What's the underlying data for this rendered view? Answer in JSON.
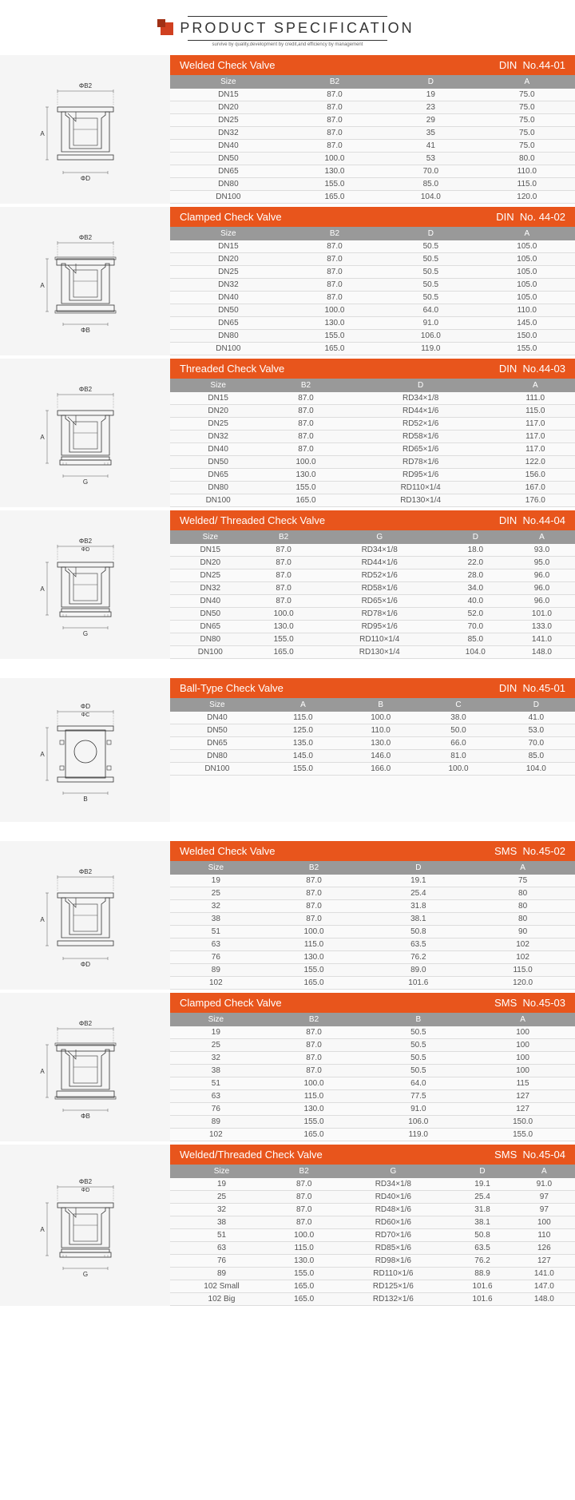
{
  "header": {
    "title": "PRODUCT SPECIFICATION",
    "subtitle": "survive by quality,development by credit,and efficiency by management"
  },
  "accent_color": "#e8551c",
  "th_bg": "#999999",
  "sections": [
    {
      "title": "Welded Check Valve",
      "standard": "DIN",
      "code": "No.44-01",
      "columns": [
        "Size",
        "B2",
        "D",
        "A"
      ],
      "rows": [
        [
          "DN15",
          "87.0",
          "19",
          "75.0"
        ],
        [
          "DN20",
          "87.0",
          "23",
          "75.0"
        ],
        [
          "DN25",
          "87.0",
          "29",
          "75.0"
        ],
        [
          "DN32",
          "87.0",
          "35",
          "75.0"
        ],
        [
          "DN40",
          "87.0",
          "41",
          "75.0"
        ],
        [
          "DN50",
          "100.0",
          "53",
          "80.0"
        ],
        [
          "DN65",
          "130.0",
          "70.0",
          "110.0"
        ],
        [
          "DN80",
          "155.0",
          "85.0",
          "115.0"
        ],
        [
          "DN100",
          "165.0",
          "104.0",
          "120.0"
        ]
      ],
      "diagram": "welded",
      "top_label": "ΦB2",
      "bottom_label": "ΦD",
      "left_label": "A"
    },
    {
      "title": "Clamped Check Valve",
      "standard": "DIN",
      "code": "No. 44-02",
      "columns": [
        "Size",
        "B2",
        "D",
        "A"
      ],
      "rows": [
        [
          "DN15",
          "87.0",
          "50.5",
          "105.0"
        ],
        [
          "DN20",
          "87.0",
          "50.5",
          "105.0"
        ],
        [
          "DN25",
          "87.0",
          "50.5",
          "105.0"
        ],
        [
          "DN32",
          "87.0",
          "50.5",
          "105.0"
        ],
        [
          "DN40",
          "87.0",
          "50.5",
          "105.0"
        ],
        [
          "DN50",
          "100.0",
          "64.0",
          "110.0"
        ],
        [
          "DN65",
          "130.0",
          "91.0",
          "145.0"
        ],
        [
          "DN80",
          "155.0",
          "106.0",
          "150.0"
        ],
        [
          "DN100",
          "165.0",
          "119.0",
          "155.0"
        ]
      ],
      "diagram": "clamped",
      "top_label": "ΦB2",
      "bottom_label": "ΦB",
      "left_label": "A"
    },
    {
      "title": "Threaded Check Valve",
      "standard": "DIN",
      "code": "No.44-03",
      "columns": [
        "Size",
        "B2",
        "D",
        "A"
      ],
      "rows": [
        [
          "DN15",
          "87.0",
          "RD34×1/8",
          "111.0"
        ],
        [
          "DN20",
          "87.0",
          "RD44×1/6",
          "115.0"
        ],
        [
          "DN25",
          "87.0",
          "RD52×1/6",
          "117.0"
        ],
        [
          "DN32",
          "87.0",
          "RD58×1/6",
          "117.0"
        ],
        [
          "DN40",
          "87.0",
          "RD65×1/6",
          "117.0"
        ],
        [
          "DN50",
          "100.0",
          "RD78×1/6",
          "122.0"
        ],
        [
          "DN65",
          "130.0",
          "RD95×1/6",
          "156.0"
        ],
        [
          "DN80",
          "155.0",
          "RD110×1/4",
          "167.0"
        ],
        [
          "DN100",
          "165.0",
          "RD130×1/4",
          "176.0"
        ]
      ],
      "diagram": "threaded",
      "top_label": "ΦB2",
      "bottom_label": "G",
      "left_label": "A"
    },
    {
      "title": "Welded/ Threaded Check Valve",
      "standard": "DIN",
      "code": "No.44-04",
      "columns": [
        "Size",
        "B2",
        "G",
        "D",
        "A"
      ],
      "rows": [
        [
          "DN15",
          "87.0",
          "RD34×1/8",
          "18.0",
          "93.0"
        ],
        [
          "DN20",
          "87.0",
          "RD44×1/6",
          "22.0",
          "95.0"
        ],
        [
          "DN25",
          "87.0",
          "RD52×1/6",
          "28.0",
          "96.0"
        ],
        [
          "DN32",
          "87.0",
          "RD58×1/6",
          "34.0",
          "96.0"
        ],
        [
          "DN40",
          "87.0",
          "RD65×1/6",
          "40.0",
          "96.0"
        ],
        [
          "DN50",
          "100.0",
          "RD78×1/6",
          "52.0",
          "101.0"
        ],
        [
          "DN65",
          "130.0",
          "RD95×1/6",
          "70.0",
          "133.0"
        ],
        [
          "DN80",
          "155.0",
          "RD110×1/4",
          "85.0",
          "141.0"
        ],
        [
          "DN100",
          "165.0",
          "RD130×1/4",
          "104.0",
          "148.0"
        ]
      ],
      "diagram": "welded-threaded",
      "top_label": "ΦB2",
      "top_label2": "ΦD",
      "bottom_label": "G",
      "left_label": "A"
    },
    {
      "title": "Ball-Type Check Valve",
      "standard": "DIN",
      "code": "No.45-01",
      "columns": [
        "Size",
        "A",
        "B",
        "C",
        "D"
      ],
      "rows": [
        [
          "DN40",
          "115.0",
          "100.0",
          "38.0",
          "41.0"
        ],
        [
          "DN50",
          "125.0",
          "110.0",
          "50.0",
          "53.0"
        ],
        [
          "DN65",
          "135.0",
          "130.0",
          "66.0",
          "70.0"
        ],
        [
          "DN80",
          "145.0",
          "146.0",
          "81.0",
          "85.0"
        ],
        [
          "DN100",
          "155.0",
          "166.0",
          "100.0",
          "104.0"
        ]
      ],
      "diagram": "ball",
      "top_label": "ΦD",
      "top_label2": "ΦC",
      "bottom_label": "B",
      "left_label": "A"
    },
    {
      "title": "Welded Check Valve",
      "standard": "SMS",
      "code": "No.45-02",
      "columns": [
        "Size",
        "B2",
        "D",
        "A"
      ],
      "rows": [
        [
          "19",
          "87.0",
          "19.1",
          "75"
        ],
        [
          "25",
          "87.0",
          "25.4",
          "80"
        ],
        [
          "32",
          "87.0",
          "31.8",
          "80"
        ],
        [
          "38",
          "87.0",
          "38.1",
          "80"
        ],
        [
          "51",
          "100.0",
          "50.8",
          "90"
        ],
        [
          "63",
          "115.0",
          "63.5",
          "102"
        ],
        [
          "76",
          "130.0",
          "76.2",
          "102"
        ],
        [
          "89",
          "155.0",
          "89.0",
          "115.0"
        ],
        [
          "102",
          "165.0",
          "101.6",
          "120.0"
        ]
      ],
      "diagram": "welded",
      "top_label": "ΦB2",
      "bottom_label": "ΦD",
      "left_label": "A"
    },
    {
      "title": "Clamped Check Valve",
      "standard": "SMS",
      "code": "No.45-03",
      "columns": [
        "Size",
        "B2",
        "B",
        "A"
      ],
      "rows": [
        [
          "19",
          "87.0",
          "50.5",
          "100"
        ],
        [
          "25",
          "87.0",
          "50.5",
          "100"
        ],
        [
          "32",
          "87.0",
          "50.5",
          "100"
        ],
        [
          "38",
          "87.0",
          "50.5",
          "100"
        ],
        [
          "51",
          "100.0",
          "64.0",
          "115"
        ],
        [
          "63",
          "115.0",
          "77.5",
          "127"
        ],
        [
          "76",
          "130.0",
          "91.0",
          "127"
        ],
        [
          "89",
          "155.0",
          "106.0",
          "150.0"
        ],
        [
          "102",
          "165.0",
          "119.0",
          "155.0"
        ]
      ],
      "diagram": "clamped",
      "top_label": "ΦB2",
      "bottom_label": "ΦB",
      "left_label": "A"
    },
    {
      "title": "Welded/Threaded Check Valve",
      "standard": "SMS",
      "code": "No.45-04",
      "columns": [
        "Size",
        "B2",
        "G",
        "D",
        "A"
      ],
      "rows": [
        [
          "19",
          "87.0",
          "RD34×1/8",
          "19.1",
          "91.0"
        ],
        [
          "25",
          "87.0",
          "RD40×1/6",
          "25.4",
          "97"
        ],
        [
          "32",
          "87.0",
          "RD48×1/6",
          "31.8",
          "97"
        ],
        [
          "38",
          "87.0",
          "RD60×1/6",
          "38.1",
          "100"
        ],
        [
          "51",
          "100.0",
          "RD70×1/6",
          "50.8",
          "110"
        ],
        [
          "63",
          "115.0",
          "RD85×1/6",
          "63.5",
          "126"
        ],
        [
          "76",
          "130.0",
          "RD98×1/6",
          "76.2",
          "127"
        ],
        [
          "89",
          "155.0",
          "RD110×1/6",
          "88.9",
          "141.0"
        ],
        [
          "102 Small",
          "165.0",
          "RD125×1/6",
          "101.6",
          "147.0"
        ],
        [
          "102 Big",
          "165.0",
          "RD132×1/6",
          "101.6",
          "148.0"
        ]
      ],
      "diagram": "welded-threaded",
      "top_label": "ΦB2",
      "top_label2": "ΦD",
      "bottom_label": "G",
      "left_label": "A"
    }
  ]
}
